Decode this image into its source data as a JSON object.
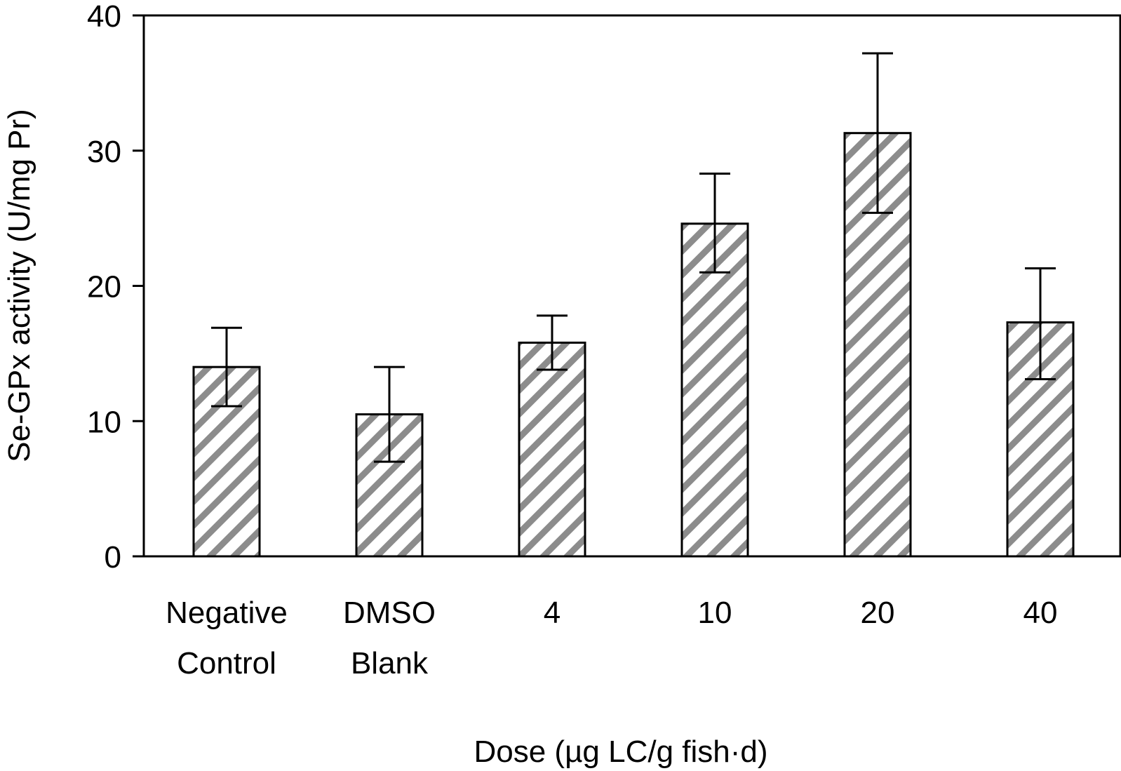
{
  "chart_data": {
    "type": "bar",
    "categories": [
      [
        "Negative",
        "Control"
      ],
      [
        "DMSO",
        "Blank"
      ],
      [
        "4"
      ],
      [
        "10"
      ],
      [
        "20"
      ],
      [
        "40"
      ]
    ],
    "values": [
      14.0,
      10.5,
      15.8,
      24.6,
      31.3,
      17.3
    ],
    "error_low": [
      11.1,
      7.0,
      13.8,
      21.0,
      25.4,
      13.1
    ],
    "error_high": [
      16.9,
      14.0,
      17.8,
      28.3,
      37.2,
      21.3
    ],
    "xlabel": "Dose (µg LC/g fish·d)",
    "ylabel": "Se-GPx activity (U/mg Pr)",
    "ylim": [
      0,
      40
    ],
    "yticks": [
      "0",
      "10",
      "20",
      "30",
      "40"
    ],
    "grid": false,
    "legend": "none",
    "bar_pattern": "diagonal-hatch",
    "colors": {
      "hatch": "#8c8c8c",
      "bar_fill": "#ffffff",
      "stroke": "#000000"
    }
  }
}
